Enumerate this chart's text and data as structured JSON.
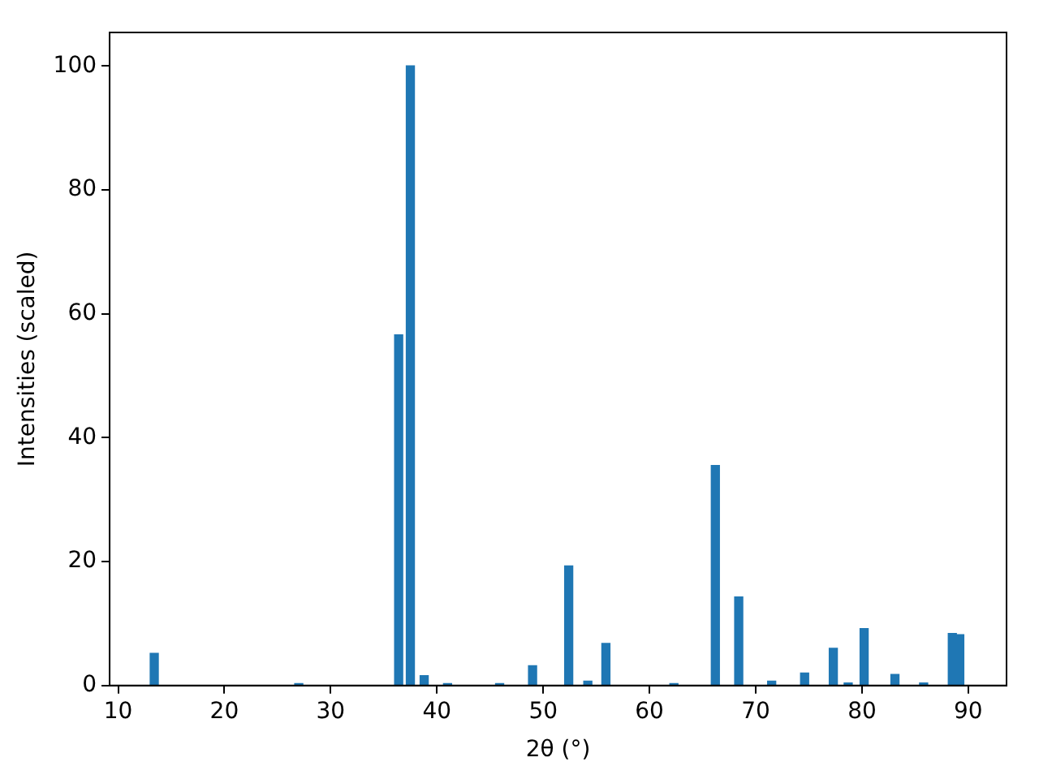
{
  "chart_data": {
    "type": "bar",
    "xlabel": "2θ (°)",
    "ylabel": "Intensities (scaled)",
    "x": [
      13.4,
      27.0,
      36.4,
      37.5,
      38.8,
      41.0,
      45.9,
      49.0,
      52.4,
      54.2,
      55.9,
      62.3,
      66.2,
      68.4,
      71.5,
      74.6,
      77.3,
      78.7,
      80.2,
      83.1,
      85.8,
      88.5,
      89.2
    ],
    "values": [
      5.2,
      0.3,
      56.6,
      100,
      1.6,
      0.3,
      0.3,
      3.2,
      19.3,
      0.7,
      6.8,
      0.3,
      35.5,
      14.3,
      0.7,
      2.0,
      6.0,
      0.4,
      9.2,
      1.8,
      0.4,
      8.4,
      8.2
    ],
    "color": "#1f77b4",
    "xlim": [
      9.2,
      93.6
    ],
    "xticks": [
      10,
      20,
      30,
      40,
      50,
      60,
      70,
      80,
      90
    ],
    "ylim": [
      0,
      105.4
    ],
    "yticks": [
      0,
      20,
      40,
      60,
      80,
      100
    ],
    "grid": false,
    "legend": false
  }
}
